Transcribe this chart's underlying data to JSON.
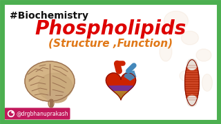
{
  "bg_color": "#ffffff",
  "border_color": "#4caf50",
  "border_linewidth": 5,
  "hashtag_text": "#Biochemistry",
  "hashtag_color": "#111111",
  "hashtag_fontsize": 10,
  "title_text": "Phospholipids",
  "title_color": "#dd0000",
  "title_fontsize": 20,
  "subtitle_text": "(Structure ,Function)",
  "subtitle_color": "#e07818",
  "subtitle_fontsize": 11,
  "watermark_text": "@drgbhanuprakash",
  "watermark_color": "#ffffff",
  "watermark_bg": "#c2185b",
  "brain_color": "#d4b486",
  "brain_outline": "#9a7050",
  "heart_red": "#cc2200",
  "heart_blue": "#4488bb",
  "heart_purple": "#6633aa",
  "heart_gold": "#cc9900",
  "muscle_red": "#cc4422",
  "muscle_white": "#e8e0d8",
  "figsize": [
    3.2,
    1.8
  ],
  "dpi": 100
}
